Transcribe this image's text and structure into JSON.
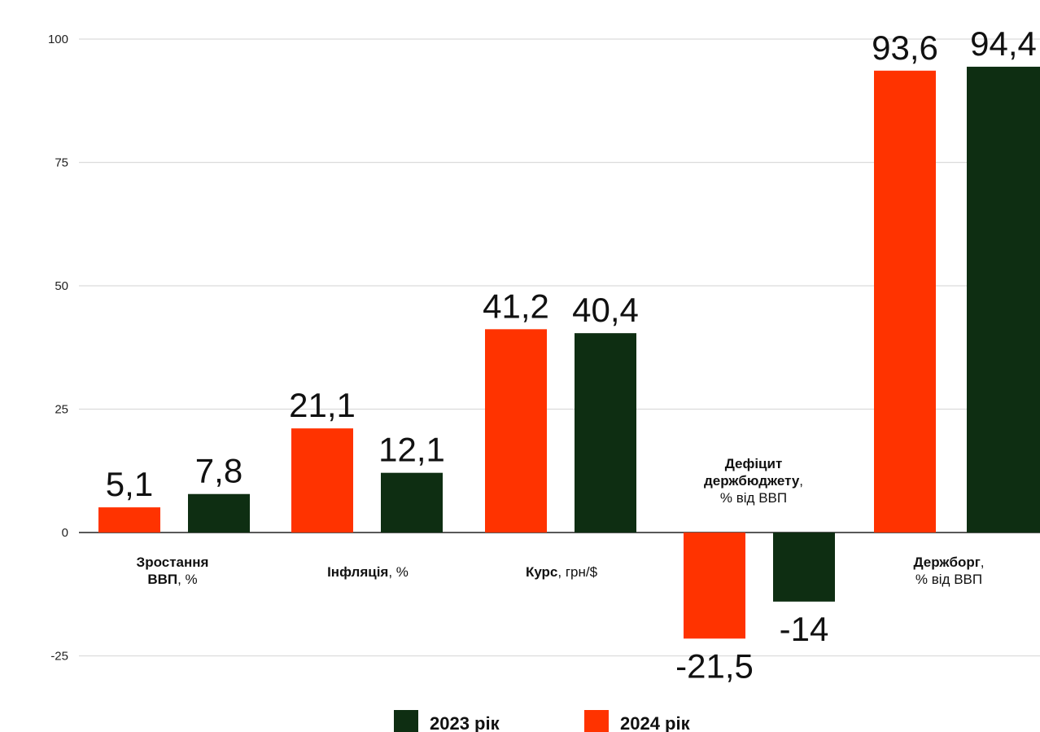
{
  "chart_data": {
    "type": "bar",
    "title": "",
    "xlabel": "",
    "ylabel": "",
    "ylim": [
      -25,
      100
    ],
    "yticks": [
      100,
      75,
      50,
      25,
      0,
      -25
    ],
    "grid": true,
    "legend_position": "bottom",
    "colors": {
      "2024": "#ff3300",
      "2023": "#0e2e12"
    },
    "categories": [
      {
        "lines": [
          [
            {
              "text": "Зростання",
              "bold": true
            }
          ],
          [
            {
              "text": "ВВП",
              "bold": true
            },
            {
              "text": ", %",
              "bold": false
            }
          ]
        ]
      },
      {
        "lines": [
          [
            {
              "text": "Інфляція",
              "bold": true
            },
            {
              "text": ", %",
              "bold": false
            }
          ]
        ]
      },
      {
        "lines": [
          [
            {
              "text": "Курс",
              "bold": true
            },
            {
              "text": ", грн/$",
              "bold": false
            }
          ]
        ]
      },
      {
        "lines": [
          [
            {
              "text": "Дефіцит",
              "bold": true
            }
          ],
          [
            {
              "text": "держбюджету",
              "bold": true
            },
            {
              "text": ",",
              "bold": false
            }
          ],
          [
            {
              "text": "% від ВВП",
              "bold": false
            }
          ]
        ]
      },
      {
        "lines": [
          [
            {
              "text": "Держборг",
              "bold": true
            },
            {
              "text": ",",
              "bold": false
            }
          ],
          [
            {
              "text": "% від ВВП",
              "bold": false
            }
          ]
        ]
      }
    ],
    "series": [
      {
        "name": "2024 рік",
        "key": "2024",
        "values": [
          5.1,
          21.1,
          41.2,
          -21.5,
          93.6
        ],
        "value_labels": [
          "5,1",
          "21,1",
          "41,2",
          "-21,5",
          "93,6"
        ]
      },
      {
        "name": "2023 рік",
        "key": "2023",
        "values": [
          7.8,
          12.1,
          40.4,
          -14,
          94.4
        ],
        "value_labels": [
          "7,8",
          "12,1",
          "40,4",
          "-14",
          "94,4"
        ]
      }
    ],
    "legend": [
      {
        "label": "2023 рік",
        "key": "2023"
      },
      {
        "label": "2024 рік",
        "key": "2024"
      }
    ]
  }
}
